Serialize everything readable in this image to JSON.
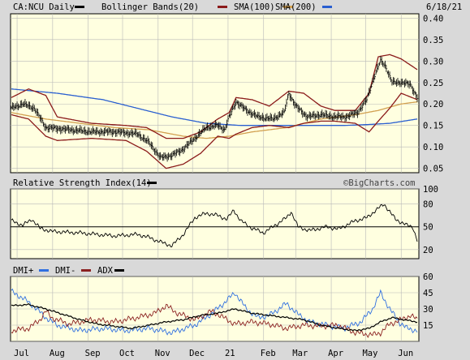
{
  "colors": {
    "page_bg": "#d9d9d9",
    "plot_bg": "#ffffe0",
    "grid": "#b8b8b8",
    "price_bar": "#000000",
    "bollinger": "#8b1a1a",
    "sma100": "#d2a050",
    "sma200": "#2a5fd0",
    "rsi": "#000000",
    "dmi_plus": "#2f6fe0",
    "dmi_minus": "#8b2020",
    "adx": "#000000",
    "watermark": "#444444"
  },
  "header": {
    "symbol_label": "CA:NCU Daily",
    "bollinger_label": "Bollinger Bands(20)",
    "sma100_label": "SMA(100)",
    "sma200_label": "SMA(200)",
    "date_label": "6/18/21"
  },
  "rsi_panel": {
    "label": "Relative Strength Index(14)",
    "watermark": "©BigCharts.com"
  },
  "dmi_panel": {
    "dmi_plus_label": "DMI+",
    "dmi_minus_label": "DMI-",
    "adx_label": "ADX"
  },
  "chart_data": [
    {
      "type": "line",
      "title": "CA:NCU Daily",
      "x_tick_labels": [
        "Jul",
        "Aug",
        "Sep",
        "Oct",
        "Nov",
        "Dec",
        "21",
        "Feb",
        "Mar",
        "Apr",
        "May",
        "Jun"
      ],
      "x_tick_index": [
        5,
        36,
        67,
        97,
        128,
        158,
        189,
        220,
        248,
        279,
        309,
        340
      ],
      "n_days": 355,
      "y_ticks": [
        0.05,
        0.1,
        0.15,
        0.2,
        0.25,
        0.3,
        0.35,
        0.4
      ],
      "y_tick_labels": [
        "0.05",
        "0.10",
        "0.15",
        "0.20",
        "0.25",
        "0.30",
        "0.35",
        "0.40"
      ],
      "ylim": [
        0.04,
        0.41
      ],
      "grid": true,
      "legend": "top",
      "price_keypoints": [
        [
          0,
          0.19
        ],
        [
          10,
          0.2
        ],
        [
          20,
          0.19
        ],
        [
          30,
          0.145
        ],
        [
          50,
          0.14
        ],
        [
          70,
          0.135
        ],
        [
          90,
          0.135
        ],
        [
          110,
          0.13
        ],
        [
          120,
          0.11
        ],
        [
          130,
          0.075
        ],
        [
          140,
          0.08
        ],
        [
          150,
          0.095
        ],
        [
          160,
          0.12
        ],
        [
          170,
          0.145
        ],
        [
          180,
          0.15
        ],
        [
          186,
          0.14
        ],
        [
          190,
          0.17
        ],
        [
          196,
          0.205
        ],
        [
          205,
          0.185
        ],
        [
          215,
          0.17
        ],
        [
          228,
          0.165
        ],
        [
          238,
          0.18
        ],
        [
          242,
          0.225
        ],
        [
          248,
          0.195
        ],
        [
          258,
          0.17
        ],
        [
          270,
          0.175
        ],
        [
          282,
          0.17
        ],
        [
          292,
          0.17
        ],
        [
          302,
          0.18
        ],
        [
          310,
          0.21
        ],
        [
          316,
          0.26
        ],
        [
          322,
          0.3
        ],
        [
          326,
          0.29
        ],
        [
          332,
          0.25
        ],
        [
          340,
          0.25
        ],
        [
          348,
          0.245
        ],
        [
          354,
          0.215
        ]
      ],
      "series": [
        {
          "name": "Bollinger Bands(20)",
          "keypoints_upper": [
            [
              0,
              0.215
            ],
            [
              15,
              0.235
            ],
            [
              30,
              0.22
            ],
            [
              40,
              0.17
            ],
            [
              70,
              0.155
            ],
            [
              100,
              0.15
            ],
            [
              118,
              0.145
            ],
            [
              135,
              0.12
            ],
            [
              150,
              0.12
            ],
            [
              165,
              0.135
            ],
            [
              180,
              0.165
            ],
            [
              190,
              0.18
            ],
            [
              196,
              0.215
            ],
            [
              210,
              0.21
            ],
            [
              225,
              0.195
            ],
            [
              242,
              0.23
            ],
            [
              255,
              0.225
            ],
            [
              270,
              0.195
            ],
            [
              282,
              0.185
            ],
            [
              300,
              0.185
            ],
            [
              312,
              0.225
            ],
            [
              320,
              0.31
            ],
            [
              330,
              0.315
            ],
            [
              340,
              0.305
            ],
            [
              354,
              0.28
            ]
          ],
          "keypoints_lower": [
            [
              0,
              0.175
            ],
            [
              15,
              0.165
            ],
            [
              30,
              0.125
            ],
            [
              40,
              0.115
            ],
            [
              70,
              0.12
            ],
            [
              100,
              0.115
            ],
            [
              118,
              0.09
            ],
            [
              135,
              0.05
            ],
            [
              150,
              0.06
            ],
            [
              165,
              0.085
            ],
            [
              180,
              0.125
            ],
            [
              190,
              0.12
            ],
            [
              196,
              0.13
            ],
            [
              210,
              0.145
            ],
            [
              225,
              0.15
            ],
            [
              242,
              0.145
            ],
            [
              255,
              0.155
            ],
            [
              270,
              0.16
            ],
            [
              282,
              0.16
            ],
            [
              300,
              0.155
            ],
            [
              312,
              0.135
            ],
            [
              320,
              0.16
            ],
            [
              330,
              0.19
            ],
            [
              340,
              0.225
            ],
            [
              354,
              0.21
            ]
          ]
        },
        {
          "name": "SMA(100)",
          "keypoints": [
            [
              0,
              0.18
            ],
            [
              30,
              0.165
            ],
            [
              60,
              0.155
            ],
            [
              90,
              0.145
            ],
            [
              120,
              0.14
            ],
            [
              150,
              0.125
            ],
            [
              170,
              0.12
            ],
            [
              190,
              0.125
            ],
            [
              210,
              0.135
            ],
            [
              240,
              0.145
            ],
            [
              270,
              0.165
            ],
            [
              300,
              0.175
            ],
            [
              320,
              0.185
            ],
            [
              340,
              0.2
            ],
            [
              354,
              0.205
            ]
          ]
        },
        {
          "name": "SMA(200)",
          "keypoints": [
            [
              0,
              0.235
            ],
            [
              40,
              0.225
            ],
            [
              80,
              0.21
            ],
            [
              110,
              0.19
            ],
            [
              140,
              0.17
            ],
            [
              170,
              0.155
            ],
            [
              200,
              0.15
            ],
            [
              230,
              0.15
            ],
            [
              260,
              0.15
            ],
            [
              290,
              0.15
            ],
            [
              310,
              0.152
            ],
            [
              330,
              0.155
            ],
            [
              354,
              0.165
            ]
          ]
        }
      ]
    },
    {
      "type": "line",
      "title": "Relative Strength Index(14)",
      "y_ticks": [
        20,
        50,
        80,
        100
      ],
      "y_tick_labels": [
        "20",
        "50",
        "80",
        "100"
      ],
      "ylim": [
        8,
        100
      ],
      "reference_line": 50,
      "series": [
        {
          "name": "Relative Strength Index(14)",
          "keypoints": [
            [
              0,
              58
            ],
            [
              10,
              52
            ],
            [
              18,
              60
            ],
            [
              25,
              48
            ],
            [
              35,
              44
            ],
            [
              60,
              42
            ],
            [
              90,
              38
            ],
            [
              110,
              40
            ],
            [
              120,
              36
            ],
            [
              130,
              30
            ],
            [
              140,
              25
            ],
            [
              150,
              40
            ],
            [
              160,
              62
            ],
            [
              170,
              68
            ],
            [
              180,
              65
            ],
            [
              188,
              60
            ],
            [
              194,
              72
            ],
            [
              200,
              58
            ],
            [
              210,
              48
            ],
            [
              220,
              42
            ],
            [
              228,
              50
            ],
            [
              240,
              62
            ],
            [
              244,
              70
            ],
            [
              250,
              50
            ],
            [
              260,
              45
            ],
            [
              275,
              50
            ],
            [
              285,
              47
            ],
            [
              300,
              58
            ],
            [
              310,
              62
            ],
            [
              318,
              72
            ],
            [
              325,
              80
            ],
            [
              330,
              70
            ],
            [
              335,
              60
            ],
            [
              345,
              52
            ],
            [
              350,
              50
            ],
            [
              354,
              32
            ]
          ]
        }
      ]
    },
    {
      "type": "line",
      "title": "DMI",
      "y_ticks": [
        0,
        15,
        30,
        45,
        60
      ],
      "y_tick_labels": [
        "0",
        "15",
        "30",
        "45",
        "60"
      ],
      "ylim": [
        0,
        60
      ],
      "series": [
        {
          "name": "DMI+",
          "keypoints": [
            [
              0,
              46
            ],
            [
              10,
              40
            ],
            [
              20,
              32
            ],
            [
              30,
              22
            ],
            [
              40,
              15
            ],
            [
              60,
              10
            ],
            [
              80,
              12
            ],
            [
              100,
              10
            ],
            [
              120,
              12
            ],
            [
              140,
              8
            ],
            [
              160,
              15
            ],
            [
              175,
              26
            ],
            [
              185,
              35
            ],
            [
              195,
              45
            ],
            [
              205,
              30
            ],
            [
              215,
              22
            ],
            [
              225,
              24
            ],
            [
              240,
              35
            ],
            [
              250,
              25
            ],
            [
              260,
              18
            ],
            [
              275,
              15
            ],
            [
              290,
              12
            ],
            [
              305,
              18
            ],
            [
              315,
              30
            ],
            [
              322,
              45
            ],
            [
              330,
              30
            ],
            [
              338,
              18
            ],
            [
              345,
              12
            ],
            [
              354,
              10
            ]
          ]
        },
        {
          "name": "DMI-",
          "keypoints": [
            [
              0,
              10
            ],
            [
              15,
              12
            ],
            [
              25,
              20
            ],
            [
              30,
              28
            ],
            [
              35,
              22
            ],
            [
              50,
              16
            ],
            [
              70,
              20
            ],
            [
              90,
              18
            ],
            [
              110,
              22
            ],
            [
              125,
              26
            ],
            [
              135,
              33
            ],
            [
              145,
              26
            ],
            [
              160,
              20
            ],
            [
              175,
              28
            ],
            [
              185,
              22
            ],
            [
              195,
              16
            ],
            [
              210,
              18
            ],
            [
              225,
              16
            ],
            [
              240,
              12
            ],
            [
              255,
              15
            ],
            [
              270,
              14
            ],
            [
              285,
              15
            ],
            [
              300,
              8
            ],
            [
              315,
              6
            ],
            [
              322,
              8
            ],
            [
              330,
              16
            ],
            [
              340,
              20
            ],
            [
              348,
              24
            ],
            [
              354,
              20
            ]
          ]
        },
        {
          "name": "ADX",
          "keypoints": [
            [
              0,
              33
            ],
            [
              15,
              34
            ],
            [
              30,
              30
            ],
            [
              45,
              25
            ],
            [
              60,
              20
            ],
            [
              75,
              16
            ],
            [
              90,
              14
            ],
            [
              105,
              12
            ],
            [
              120,
              15
            ],
            [
              135,
              18
            ],
            [
              150,
              20
            ],
            [
              165,
              24
            ],
            [
              180,
              26
            ],
            [
              195,
              30
            ],
            [
              210,
              26
            ],
            [
              225,
              24
            ],
            [
              240,
              22
            ],
            [
              255,
              20
            ],
            [
              270,
              15
            ],
            [
              285,
              12
            ],
            [
              300,
              10
            ],
            [
              312,
              12
            ],
            [
              322,
              18
            ],
            [
              332,
              22
            ],
            [
              342,
              20
            ],
            [
              354,
              18
            ]
          ]
        }
      ]
    }
  ]
}
